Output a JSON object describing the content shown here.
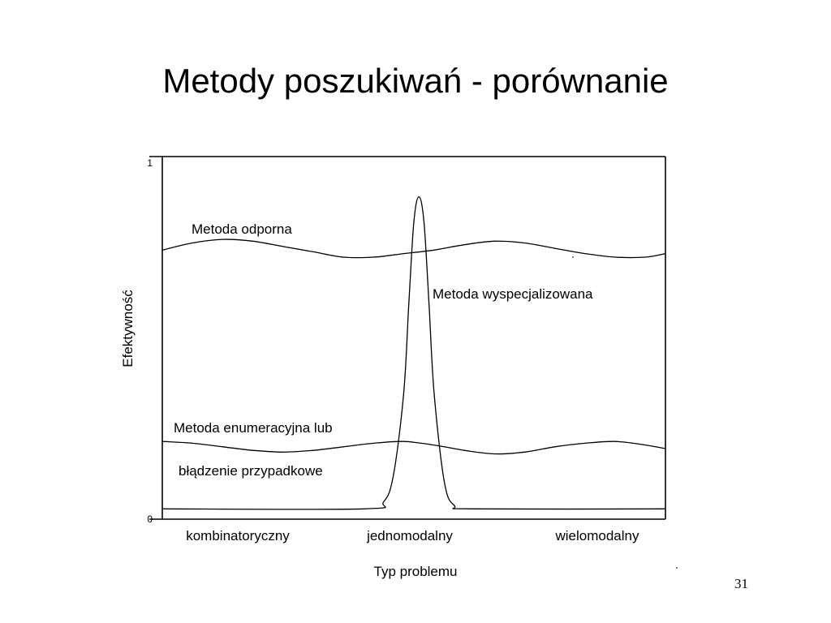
{
  "slide": {
    "title": "Metody poszukiwań - porównanie",
    "page_number": "31"
  },
  "chart_data": {
    "type": "line",
    "title": "",
    "xlabel": "Typ problemu",
    "ylabel": "Efektywność",
    "ylim": [
      0,
      1
    ],
    "yticks": [
      "0",
      "1"
    ],
    "categories": [
      "kombinatoryczny",
      "jednomodalny",
      "wielomodalny"
    ],
    "xlim": [
      0,
      100
    ],
    "grid": false,
    "legend": "none",
    "line_color": "#000000",
    "series": [
      {
        "name": "Metoda odporna",
        "x": [
          0,
          6,
          12,
          18,
          24,
          30,
          36,
          42,
          48,
          54,
          60,
          66,
          72,
          78,
          84,
          90,
          96,
          100
        ],
        "y": [
          0.75,
          0.77,
          0.78,
          0.775,
          0.76,
          0.745,
          0.73,
          0.73,
          0.74,
          0.75,
          0.765,
          0.775,
          0.77,
          0.755,
          0.74,
          0.73,
          0.73,
          0.74
        ]
      },
      {
        "name": "Metoda wyspecjalizowana",
        "x": [
          0,
          40,
          44,
          46,
          48,
          49,
          50,
          51,
          52,
          53,
          54,
          56,
          58,
          62,
          100
        ],
        "y": [
          0.02,
          0.02,
          0.04,
          0.12,
          0.35,
          0.6,
          0.83,
          0.9,
          0.83,
          0.6,
          0.35,
          0.1,
          0.03,
          0.02,
          0.02
        ]
      },
      {
        "name": "Metoda enumeracyjna lub błądzenie przypadkowe",
        "x": [
          0,
          6,
          12,
          18,
          24,
          30,
          36,
          42,
          48,
          54,
          60,
          66,
          72,
          78,
          84,
          90,
          96,
          100
        ],
        "y": [
          0.21,
          0.205,
          0.195,
          0.185,
          0.18,
          0.185,
          0.195,
          0.205,
          0.21,
          0.2,
          0.185,
          0.175,
          0.18,
          0.195,
          0.205,
          0.21,
          0.2,
          0.19
        ]
      }
    ],
    "annotations": [
      {
        "series": 0,
        "lines": [
          "Metoda odporna"
        ]
      },
      {
        "series": 1,
        "lines": [
          "Metoda wyspecjalizowana"
        ]
      },
      {
        "series": 2,
        "lines": [
          "Metoda enumeracyjna lub",
          "błądzenie przypadkowe"
        ]
      }
    ]
  }
}
